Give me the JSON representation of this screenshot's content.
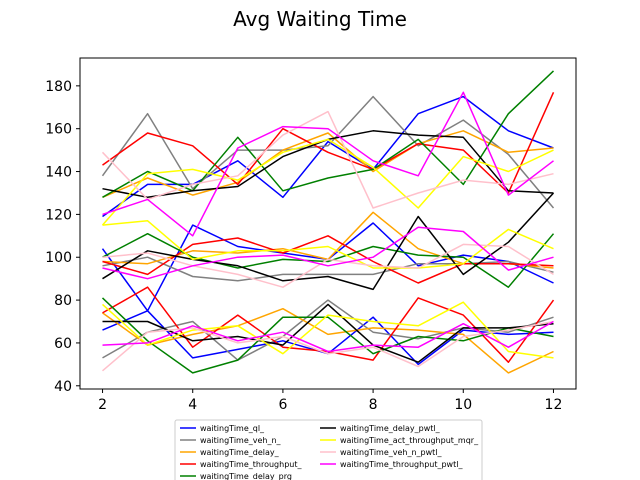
{
  "chart_data": {
    "type": "line",
    "title": "Avg Waiting Time",
    "xlabel": "",
    "ylabel": "",
    "xlim": [
      1.5,
      12.5
    ],
    "ylim": [
      38.5,
      193
    ],
    "xticks": [
      2,
      4,
      6,
      8,
      10,
      12
    ],
    "yticks": [
      40,
      60,
      80,
      100,
      120,
      140,
      160,
      180
    ],
    "grid": false,
    "legend_placement": "bottom-center",
    "x": [
      2,
      3,
      4,
      5,
      6,
      7,
      8,
      9,
      10,
      11,
      12
    ],
    "series": [
      {
        "name": "waitingTime_ql_",
        "color": "#0000ff",
        "values": [
          119,
          134,
          134,
          145,
          128,
          154,
          141,
          167,
          175,
          159,
          151
        ]
      },
      {
        "name": "waitingTime_ql_",
        "color": "#0000ff",
        "values": [
          104,
          75,
          115,
          105,
          102,
          99,
          116,
          96,
          101,
          98,
          88
        ]
      },
      {
        "name": "waitingTime_ql_",
        "color": "#0000ff",
        "values": [
          66,
          75,
          53,
          57,
          61,
          55,
          72,
          50,
          66,
          64,
          65
        ]
      },
      {
        "name": "waitingTime_veh_n_",
        "color": "#808080",
        "values": [
          138,
          167,
          132,
          150,
          150,
          152,
          175,
          152,
          164,
          148,
          123
        ]
      },
      {
        "name": "waitingTime_veh_n_",
        "color": "#808080",
        "values": [
          96,
          100,
          91,
          89,
          92,
          92,
          92,
          97,
          97,
          98,
          93
        ]
      },
      {
        "name": "waitingTime_veh_n_",
        "color": "#808080",
        "values": [
          53,
          65,
          70,
          52,
          63,
          80,
          65,
          62,
          67,
          65,
          72
        ]
      },
      {
        "name": "waitingTime_delay_",
        "color": "#ffa500",
        "values": [
          128,
          137,
          129,
          135,
          150,
          158,
          140,
          153,
          159,
          149,
          151
        ]
      },
      {
        "name": "waitingTime_delay_",
        "color": "#ffa500",
        "values": [
          98,
          97,
          103,
          102,
          104,
          99,
          121,
          104,
          97,
          97,
          95
        ]
      },
      {
        "name": "waitingTime_delay_",
        "color": "#ffa500",
        "values": [
          74,
          59,
          64,
          68,
          76,
          64,
          67,
          66,
          64,
          46,
          56
        ]
      },
      {
        "name": "waitingTime_throughput_",
        "color": "#ff0000",
        "values": [
          143,
          158,
          152,
          134,
          160,
          149,
          141,
          153,
          150,
          130,
          177
        ]
      },
      {
        "name": "waitingTime_throughput_",
        "color": "#ff0000",
        "values": [
          98,
          92,
          106,
          109,
          102,
          110,
          98,
          88,
          97,
          97,
          96
        ]
      },
      {
        "name": "waitingTime_throughput_",
        "color": "#ff0000",
        "values": [
          74,
          86,
          58,
          73,
          58,
          56,
          52,
          81,
          73,
          51,
          80
        ]
      },
      {
        "name": "waitingTime_delay_prg",
        "color": "#008000",
        "values": [
          128,
          140,
          131,
          156,
          131,
          137,
          141,
          155,
          134,
          167,
          187
        ]
      },
      {
        "name": "waitingTime_delay_prg",
        "color": "#008000",
        "values": [
          100,
          111,
          100,
          95,
          99,
          98,
          105,
          101,
          100,
          86,
          111
        ]
      },
      {
        "name": "waitingTime_delay_prg",
        "color": "#008000",
        "values": [
          81,
          61,
          46,
          52,
          72,
          72,
          55,
          63,
          61,
          67,
          63
        ]
      },
      {
        "name": "waitingTime_delay_pwtl_",
        "color": "#000000",
        "values": [
          132,
          128,
          131,
          133,
          147,
          155,
          159,
          157,
          156,
          131,
          130
        ]
      },
      {
        "name": "waitingTime_delay_pwtl_",
        "color": "#000000",
        "values": [
          90,
          103,
          99,
          96,
          89,
          91,
          85,
          119,
          92,
          107,
          130
        ]
      },
      {
        "name": "waitingTime_delay_pwtl_",
        "color": "#000000",
        "values": [
          70,
          70,
          61,
          63,
          59,
          78,
          59,
          51,
          67,
          67,
          69
        ]
      },
      {
        "name": "waitingTime_act_throughput_mqr_",
        "color": "#ffff00",
        "values": [
          115,
          139,
          141,
          136,
          149,
          155,
          142,
          123,
          147,
          140,
          150
        ]
      },
      {
        "name": "waitingTime_act_throughput_mqr_",
        "color": "#ffff00",
        "values": [
          115,
          117,
          99,
          103,
          103,
          105,
          95,
          95,
          97,
          113,
          104
        ]
      },
      {
        "name": "waitingTime_act_throughput_mqr_",
        "color": "#ffff00",
        "values": [
          78,
          59,
          66,
          68,
          55,
          73,
          70,
          68,
          79,
          56,
          53
        ]
      },
      {
        "name": "waitingTime_veh_n_pwtl_",
        "color": "#ffc0cb",
        "values": [
          149,
          127,
          134,
          138,
          157,
          168,
          123,
          130,
          136,
          134,
          139
        ]
      },
      {
        "name": "waitingTime_veh_n_pwtl_",
        "color": "#ffc0cb",
        "values": [
          100,
          102,
          96,
          92,
          86,
          99,
          96,
          95,
          106,
          105,
          92
        ]
      },
      {
        "name": "waitingTime_veh_n_pwtl_",
        "color": "#ffc0cb",
        "values": [
          47,
          65,
          67,
          60,
          63,
          55,
          58,
          49,
          63,
          66,
          70
        ]
      },
      {
        "name": "waitingTime_throughput_pwtl_",
        "color": "#ff00ff",
        "values": [
          120,
          127,
          110,
          151,
          161,
          160,
          145,
          138,
          177,
          129,
          145
        ]
      },
      {
        "name": "waitingTime_throughput_pwtl_",
        "color": "#ff00ff",
        "values": [
          95,
          90,
          96,
          100,
          101,
          96,
          100,
          114,
          112,
          94,
          100
        ]
      },
      {
        "name": "waitingTime_throughput_pwtl_",
        "color": "#ff00ff",
        "values": [
          59,
          60,
          68,
          61,
          65,
          56,
          59,
          58,
          69,
          58,
          70
        ]
      }
    ],
    "legend": [
      {
        "name": "waitingTime_ql_",
        "color": "#0000ff"
      },
      {
        "name": "waitingTime_veh_n_",
        "color": "#808080"
      },
      {
        "name": "waitingTime_delay_",
        "color": "#ffa500"
      },
      {
        "name": "waitingTime_throughput_",
        "color": "#ff0000"
      },
      {
        "name": "waitingTime_delay_prg",
        "color": "#008000"
      },
      {
        "name": "waitingTime_delay_pwtl_",
        "color": "#000000"
      },
      {
        "name": "waitingTime_act_throughput_mqr_",
        "color": "#ffff00"
      },
      {
        "name": "waitingTime_veh_n_pwtl_",
        "color": "#ffc0cb"
      },
      {
        "name": "waitingTime_throughput_pwtl_",
        "color": "#ff00ff"
      }
    ]
  }
}
